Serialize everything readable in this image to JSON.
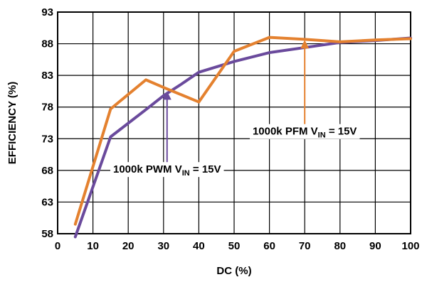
{
  "chart_data": {
    "type": "line",
    "title": "",
    "xlabel": "DC (%)",
    "ylabel": "EFFICIENCY (%)",
    "xlim": [
      0,
      100
    ],
    "ylim": [
      58,
      93
    ],
    "x_ticks": [
      0,
      10,
      20,
      30,
      40,
      50,
      60,
      70,
      80,
      90,
      100
    ],
    "y_ticks": [
      58,
      63,
      68,
      73,
      78,
      83,
      88,
      93
    ],
    "grid": true,
    "colors": {
      "pwm": "#6a4a9c",
      "pfm": "#e4812f",
      "grid": "#000000"
    },
    "series": [
      {
        "key": "pwm",
        "x": [
          5,
          15,
          25,
          30,
          35,
          40,
          50,
          60,
          70,
          80,
          90,
          100
        ],
        "y": [
          57.5,
          73.3,
          77.6,
          79.8,
          81.6,
          83.5,
          85.2,
          86.6,
          87.4,
          88.2,
          88.5,
          88.9
        ]
      },
      {
        "key": "pfm",
        "x": [
          5,
          15,
          25,
          30,
          40,
          50,
          60,
          70,
          80,
          90,
          100
        ],
        "y": [
          59.5,
          77.7,
          82.3,
          81.1,
          78.8,
          86.8,
          89.0,
          88.7,
          88.3,
          88.6,
          88.8
        ]
      }
    ],
    "annotations": [
      {
        "key": "pwm",
        "text_main": "1000k PWM V",
        "text_sub": "IN",
        "text_tail": " = 15V",
        "arrow_x": 31,
        "arrow_from_y": 68.3,
        "arrow_to_y": 80.5
      },
      {
        "key": "pfm",
        "text_main": "1000k PFM V",
        "text_sub": "IN",
        "text_tail": " = 15V",
        "arrow_x": 70,
        "arrow_from_y": 74.3,
        "arrow_to_y": 88.6
      }
    ]
  }
}
